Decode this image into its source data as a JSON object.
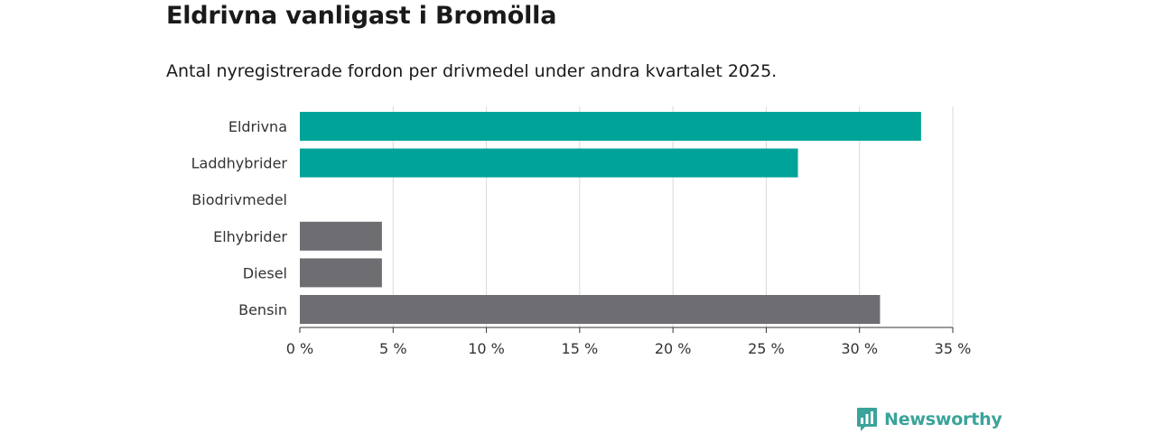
{
  "chart_data": {
    "type": "bar",
    "orientation": "horizontal",
    "title": "Eldrivna vanligast i Bromölla",
    "subtitle": "Antal nyregistrerade fordon per drivmedel under andra kvartalet 2025.",
    "categories": [
      "Eldrivna",
      "Laddhybrider",
      "Biodrivmedel",
      "Elhybrider",
      "Diesel",
      "Bensin"
    ],
    "values": [
      33.3,
      26.7,
      0,
      4.4,
      4.4,
      31.1
    ],
    "bar_colors": [
      "#00a398",
      "#00a398",
      "#00a398",
      "#6e6d72",
      "#6e6d72",
      "#6e6d72"
    ],
    "xlim": [
      0,
      35
    ],
    "xticks": [
      0,
      5,
      10,
      15,
      20,
      25,
      30,
      35
    ],
    "tick_labels": [
      "0 %",
      "5 %",
      "10 %",
      "15 %",
      "20 %",
      "25 %",
      "30 %",
      "35 %"
    ],
    "xlabel": "",
    "ylabel": "",
    "grid": "vertical"
  },
  "brand": {
    "name": "Newsworthy",
    "color": "#3aa39a",
    "icon": "bar-chart-badge-icon"
  }
}
